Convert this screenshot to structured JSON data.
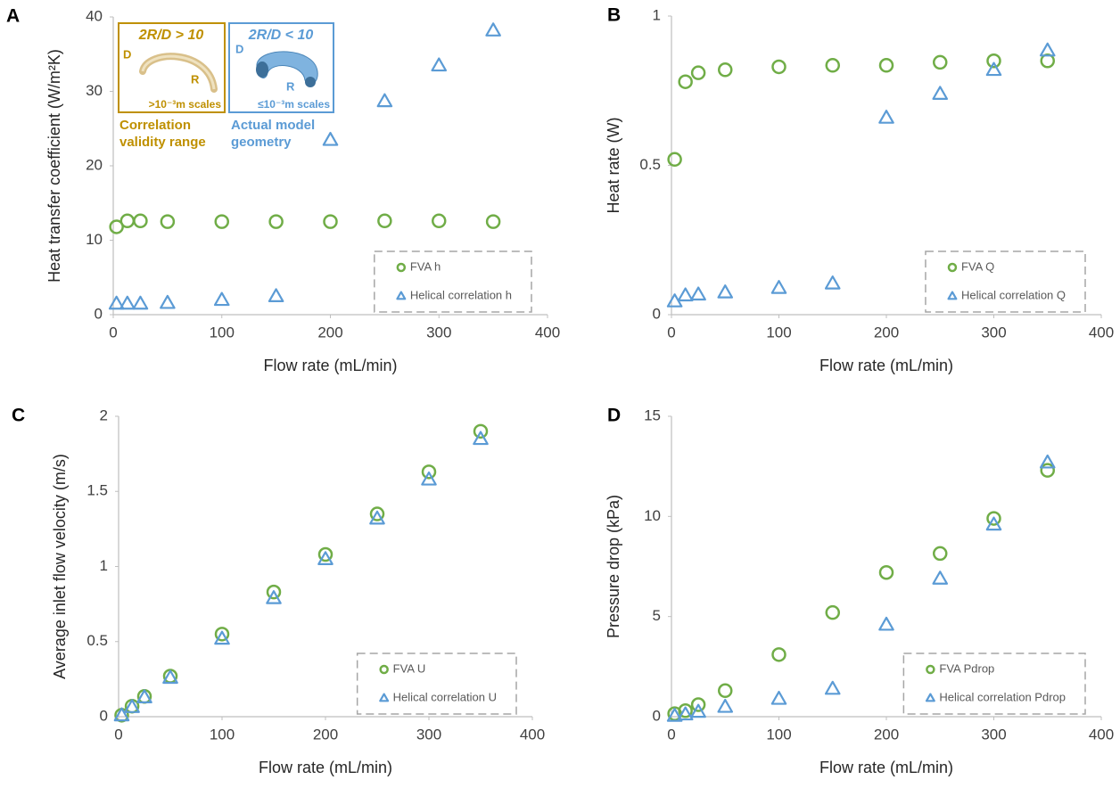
{
  "chart_data": [
    {
      "type": "scatter",
      "panel": "A",
      "xlabel": "Flow rate (mL/min)",
      "ylabel": "Heat transfer coefficient (W/m²K)",
      "x": [
        3,
        13,
        25,
        50,
        100,
        150,
        200,
        250,
        300,
        350
      ],
      "series": [
        {
          "name": "FVA h",
          "color": "#70ad47",
          "marker": "circle",
          "values": [
            11.8,
            12.6,
            12.6,
            12.5,
            12.5,
            12.5,
            12.5,
            12.6,
            12.6,
            12.5
          ]
        },
        {
          "name": "Helical correlation h",
          "color": "#5b9bd5",
          "marker": "triangle",
          "values": [
            1.5,
            1.5,
            1.5,
            1.6,
            2.0,
            2.5,
            23.5,
            28.7,
            33.5,
            38.2
          ]
        }
      ],
      "xlim": [
        0,
        400
      ],
      "xticks": [
        0,
        100,
        200,
        300,
        400
      ],
      "ylim": [
        0,
        40
      ],
      "yticks": [
        0,
        10,
        20,
        30,
        40
      ],
      "legend": "lower right",
      "annotations": [
        "2R/D > 10",
        "D",
        "R",
        ">10⁻³m scales",
        "Correlation",
        "validity range",
        "2R/D < 10",
        "D",
        "R",
        "≤10⁻³m scales",
        "Actual model",
        "geometry"
      ]
    },
    {
      "type": "scatter",
      "panel": "B",
      "xlabel": "Flow rate (mL/min)",
      "ylabel": "Heat rate (W)",
      "x": [
        3,
        13,
        25,
        50,
        100,
        150,
        200,
        250,
        300,
        350
      ],
      "series": [
        {
          "name": "FVA Q",
          "color": "#70ad47",
          "marker": "circle",
          "values": [
            0.52,
            0.78,
            0.81,
            0.82,
            0.83,
            0.835,
            0.835,
            0.845,
            0.85,
            0.85
          ]
        },
        {
          "name": "Helical correlation Q",
          "color": "#5b9bd5",
          "marker": "triangle",
          "values": [
            0.045,
            0.065,
            0.068,
            0.075,
            0.09,
            0.105,
            0.66,
            0.74,
            0.82,
            0.885
          ]
        }
      ],
      "xlim": [
        0,
        400
      ],
      "xticks": [
        0,
        100,
        200,
        300,
        400
      ],
      "ylim": [
        0,
        1
      ],
      "yticks": [
        0,
        0.5,
        1
      ],
      "legend": "lower right"
    },
    {
      "type": "scatter",
      "panel": "C",
      "xlabel": "Flow rate (mL/min)",
      "ylabel": "Average inlet flow velocity (m/s)",
      "x": [
        3,
        13,
        25,
        50,
        100,
        150,
        200,
        250,
        300,
        350
      ],
      "series": [
        {
          "name": "FVA U",
          "color": "#70ad47",
          "marker": "circle",
          "values": [
            0.01,
            0.07,
            0.135,
            0.27,
            0.55,
            0.83,
            1.08,
            1.35,
            1.63,
            1.9
          ]
        },
        {
          "name": "Helical correlation U",
          "color": "#5b9bd5",
          "marker": "triangle",
          "values": [
            0.01,
            0.065,
            0.13,
            0.26,
            0.52,
            0.79,
            1.05,
            1.32,
            1.58,
            1.85
          ]
        }
      ],
      "xlim": [
        0,
        400
      ],
      "xticks": [
        0,
        100,
        200,
        300,
        400
      ],
      "ylim": [
        0,
        2
      ],
      "yticks": [
        0,
        0.5,
        1,
        1.5,
        2
      ],
      "legend": "lower right"
    },
    {
      "type": "scatter",
      "panel": "D",
      "xlabel": "Flow rate (mL/min)",
      "ylabel": "Pressure drop (kPa)",
      "x": [
        3,
        13,
        25,
        50,
        100,
        150,
        200,
        250,
        300,
        350
      ],
      "series": [
        {
          "name": "FVA Pdrop",
          "color": "#70ad47",
          "marker": "circle",
          "values": [
            0.15,
            0.3,
            0.6,
            1.3,
            3.1,
            5.2,
            7.2,
            8.15,
            9.9,
            12.3
          ]
        },
        {
          "name": "Helical correlation Pdrop",
          "color": "#5b9bd5",
          "marker": "triangle",
          "values": [
            0.05,
            0.12,
            0.25,
            0.5,
            0.9,
            1.4,
            4.6,
            6.9,
            9.6,
            12.7
          ]
        }
      ],
      "xlim": [
        0,
        400
      ],
      "xticks": [
        0,
        100,
        200,
        300,
        400
      ],
      "ylim": [
        0,
        15
      ],
      "yticks": [
        0,
        5,
        10,
        15
      ],
      "legend": "lower right"
    }
  ]
}
